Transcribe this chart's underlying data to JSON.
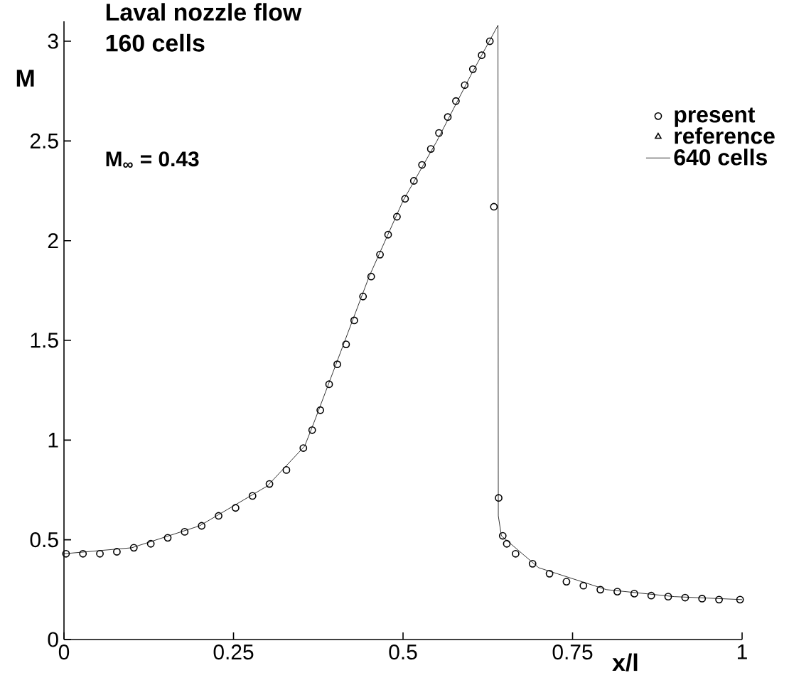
{
  "chart_data": {
    "type": "scatter",
    "title": "Laval nozzle flow",
    "subtitle": "160 cells",
    "xlabel": "x/l",
    "ylabel": "M",
    "annotations": [
      "M$_{∞}$ = 0.43"
    ],
    "xlim": [
      0,
      1
    ],
    "ylim": [
      0,
      3.1
    ],
    "xticks": [
      0,
      0.25,
      0.5,
      0.75,
      1
    ],
    "yticks": [
      0,
      0.5,
      1,
      1.5,
      2,
      2.5,
      3
    ],
    "legend": "top right",
    "series": [
      {
        "name": "present",
        "marker": "circle",
        "color": "#000000",
        "x": [
          0.003,
          0.028,
          0.053,
          0.078,
          0.103,
          0.128,
          0.153,
          0.178,
          0.203,
          0.228,
          0.253,
          0.278,
          0.303,
          0.328,
          0.353,
          0.366,
          0.378,
          0.391,
          0.403,
          0.416,
          0.428,
          0.441,
          0.453,
          0.466,
          0.478,
          0.491,
          0.503,
          0.516,
          0.528,
          0.541,
          0.553,
          0.566,
          0.578,
          0.591,
          0.603,
          0.616,
          0.628,
          0.634,
          0.641,
          0.647,
          0.653,
          0.666,
          0.691,
          0.716,
          0.741,
          0.766,
          0.791,
          0.816,
          0.841,
          0.866,
          0.891,
          0.916,
          0.941,
          0.966,
          0.997
        ],
        "values": [
          0.43,
          0.43,
          0.43,
          0.44,
          0.46,
          0.48,
          0.51,
          0.54,
          0.57,
          0.62,
          0.66,
          0.72,
          0.78,
          0.85,
          0.96,
          1.05,
          1.15,
          1.28,
          1.38,
          1.48,
          1.6,
          1.72,
          1.82,
          1.93,
          2.03,
          2.12,
          2.21,
          2.3,
          2.38,
          2.46,
          2.54,
          2.62,
          2.7,
          2.78,
          2.86,
          2.93,
          3.0,
          2.17,
          0.71,
          0.52,
          0.48,
          0.43,
          0.38,
          0.33,
          0.29,
          0.27,
          0.25,
          0.24,
          0.23,
          0.22,
          0.215,
          0.21,
          0.205,
          0.2,
          0.2
        ]
      },
      {
        "name": "reference",
        "type": "scatter",
        "marker": "triangle",
        "color": "#000000"
      },
      {
        "name": "640 cells",
        "type": "line",
        "marker": "none",
        "line_style": "solid",
        "color": "#000000",
        "x": [
          0,
          0.1,
          0.2,
          0.3,
          0.355,
          0.37,
          0.4,
          0.45,
          0.5,
          0.55,
          0.6,
          0.64,
          0.6405,
          0.645,
          0.7,
          0.8,
          0.9,
          1.0
        ],
        "values": [
          0.43,
          0.46,
          0.57,
          0.77,
          0.97,
          1.1,
          1.37,
          1.82,
          2.2,
          2.5,
          2.83,
          3.08,
          0.62,
          0.52,
          0.36,
          0.25,
          0.215,
          0.2
        ]
      }
    ]
  }
}
